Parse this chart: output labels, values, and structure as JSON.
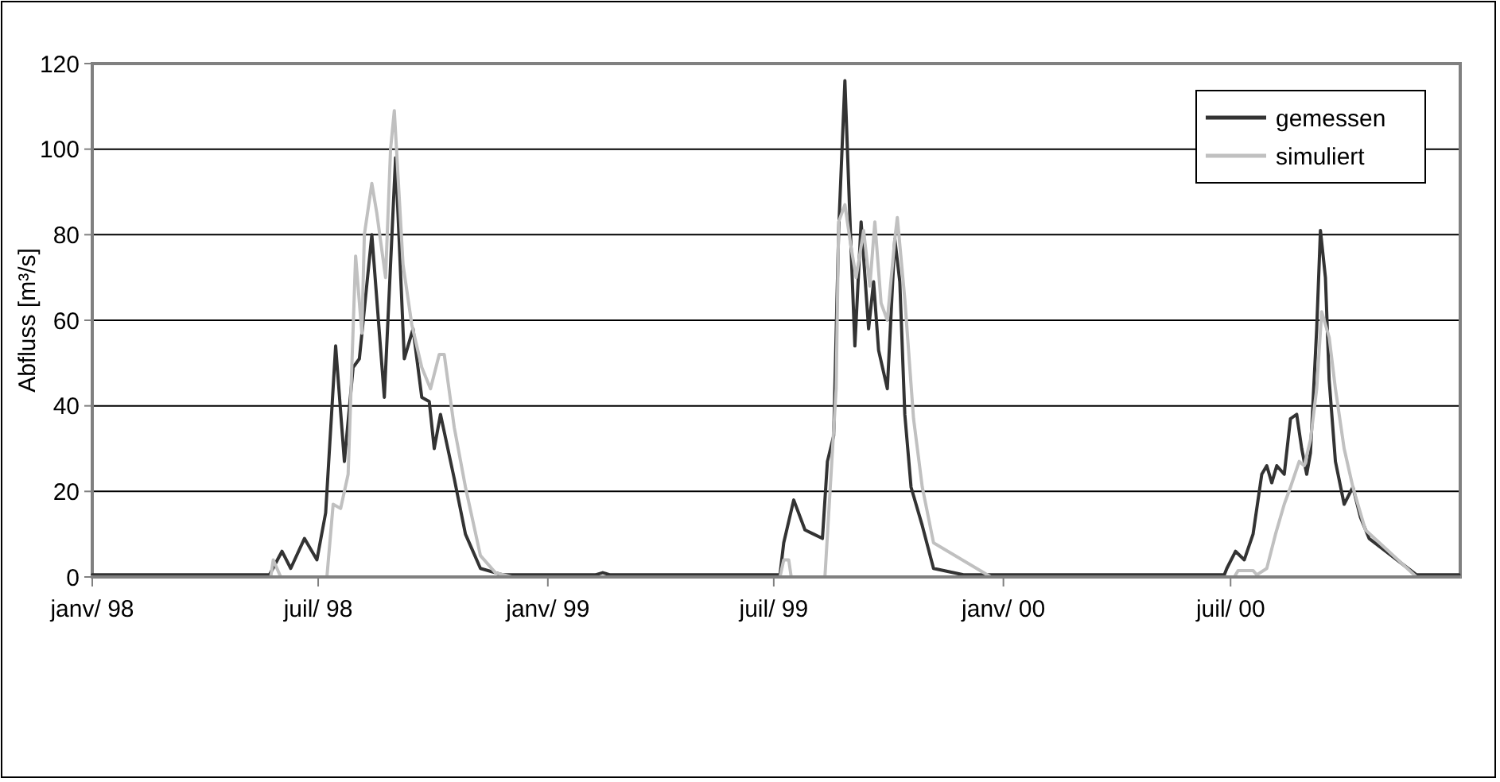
{
  "chart_data": {
    "type": "line",
    "ylabel": "Abfluss [m³/s]",
    "xlim": [
      "1998-01-01",
      "2001-01-01"
    ],
    "xticks": [
      {
        "value": "1998-01-01",
        "label": "janv/ 98"
      },
      {
        "value": "1998-07-01",
        "label": "juil/ 98"
      },
      {
        "value": "1999-01-01",
        "label": "janv/ 99"
      },
      {
        "value": "1999-07-01",
        "label": "juil/ 99"
      },
      {
        "value": "2000-01-01",
        "label": "janv/ 00"
      },
      {
        "value": "2000-07-01",
        "label": "juil/ 00"
      }
    ],
    "ylim": [
      0,
      120
    ],
    "yticks": [
      0,
      20,
      40,
      60,
      80,
      100,
      120
    ],
    "grid": "y",
    "legend": "top right",
    "marker": "none",
    "line_style": "solid",
    "series": [
      {
        "name": "gemessen",
        "color": "#333333",
        "x": [
          "1998-01-01",
          "1998-03-01",
          "1998-05-23",
          "1998-06-02",
          "1998-06-09",
          "1998-06-20",
          "1998-06-30",
          "1998-07-07",
          "1998-07-15",
          "1998-07-22",
          "1998-07-29",
          "1998-08-03",
          "1998-08-13",
          "1998-08-23",
          "1998-09-01",
          "1998-09-08",
          "1998-09-15",
          "1998-09-22",
          "1998-09-28",
          "1998-10-02",
          "1998-10-07",
          "1998-10-18",
          "1998-10-27",
          "1998-11-08",
          "1998-11-26",
          "1999-02-08",
          "1999-02-14",
          "1999-02-20",
          "1999-06-01",
          "1999-07-06",
          "1999-07-09",
          "1999-07-17",
          "1999-07-26",
          "1999-08-02",
          "1999-08-09",
          "1999-08-13",
          "1999-08-18",
          "1999-08-22",
          "1999-08-27",
          "1999-08-31",
          "1999-09-04",
          "1999-09-09",
          "1999-09-15",
          "1999-09-19",
          "1999-09-23",
          "1999-09-30",
          "1999-10-06",
          "1999-10-10",
          "1999-10-14",
          "1999-10-19",
          "1999-10-28",
          "1999-11-06",
          "1999-11-30",
          "2000-03-01",
          "2000-06-26",
          "2000-06-28",
          "2000-07-05",
          "2000-07-12",
          "2000-07-19",
          "2000-07-26",
          "2000-07-30",
          "2000-08-03",
          "2000-08-07",
          "2000-08-13",
          "2000-08-18",
          "2000-08-23",
          "2000-08-27",
          "2000-08-31",
          "2000-09-03",
          "2000-09-08",
          "2000-09-11",
          "2000-09-15",
          "2000-09-18",
          "2000-09-23",
          "2000-09-30",
          "2000-10-07",
          "2000-10-13",
          "2000-10-20",
          "2000-11-27",
          "2000-12-31"
        ],
        "values": [
          0.5,
          0.5,
          0.5,
          6,
          2,
          9,
          4,
          15,
          54,
          27,
          49,
          51,
          80,
          42,
          98,
          51,
          58,
          42,
          41,
          30,
          38,
          23,
          10,
          2,
          0.5,
          0.5,
          1,
          0.5,
          0.5,
          0.5,
          8,
          18,
          11,
          10,
          9,
          27,
          33,
          81,
          116,
          84,
          54,
          83,
          58,
          69,
          53,
          44,
          79,
          69,
          38,
          21,
          12,
          2,
          0.5,
          0.5,
          0.5,
          2,
          6,
          4,
          10,
          24,
          26,
          22,
          26,
          24,
          37,
          38,
          30,
          24,
          29,
          58,
          81,
          70,
          46,
          27,
          17,
          21,
          14,
          9,
          0.5,
          0.5
        ]
      },
      {
        "name": "simuliert",
        "color": "#c0c0c0",
        "x": [
          "1998-01-01",
          "1998-05-24",
          "1998-05-26",
          "1998-06-01",
          "1998-07-08",
          "1998-07-13",
          "1998-07-19",
          "1998-07-25",
          "1998-07-31",
          "1998-08-05",
          "1998-08-07",
          "1998-08-13",
          "1998-08-17",
          "1998-08-24",
          "1998-08-28",
          "1998-08-31",
          "1998-09-07",
          "1998-09-14",
          "1998-09-22",
          "1998-09-29",
          "1998-10-06",
          "1998-10-10",
          "1998-10-18",
          "1998-10-27",
          "1998-11-08",
          "1998-11-20",
          "1998-12-03",
          "1999-07-06",
          "1999-07-09",
          "1999-07-13",
          "1999-07-15",
          "1999-08-11",
          "1999-08-20",
          "1999-08-22",
          "1999-08-27",
          "1999-09-01",
          "1999-09-05",
          "1999-09-11",
          "1999-09-16",
          "1999-09-20",
          "1999-09-25",
          "1999-09-30",
          "1999-10-06",
          "1999-10-08",
          "1999-10-14",
          "1999-10-21",
          "1999-10-28",
          "1999-11-06",
          "1999-12-22",
          "2000-07-04",
          "2000-07-07",
          "2000-07-19",
          "2000-07-22",
          "2000-07-30",
          "2000-08-06",
          "2000-08-13",
          "2000-08-18",
          "2000-08-25",
          "2000-08-29",
          "2000-09-03",
          "2000-09-08",
          "2000-09-12",
          "2000-09-18",
          "2000-09-23",
          "2000-09-30",
          "2000-10-07",
          "2000-10-17",
          "2000-11-27",
          "2000-12-31"
        ],
        "values": [
          0,
          0,
          4,
          0,
          0,
          17,
          16,
          24,
          75,
          57,
          80,
          92,
          85,
          70,
          100,
          109,
          73,
          59,
          49,
          44,
          52,
          52,
          35,
          21,
          5,
          1,
          0,
          0,
          4,
          4,
          0,
          0,
          44,
          83,
          87,
          77,
          70,
          81,
          68,
          83,
          64,
          60,
          79,
          84,
          65,
          37,
          21,
          8,
          0,
          0,
          1.5,
          1.5,
          0.5,
          2,
          10,
          17,
          21,
          27,
          26,
          32,
          44,
          62,
          56,
          44,
          30,
          21,
          11,
          0,
          0
        ]
      }
    ]
  }
}
